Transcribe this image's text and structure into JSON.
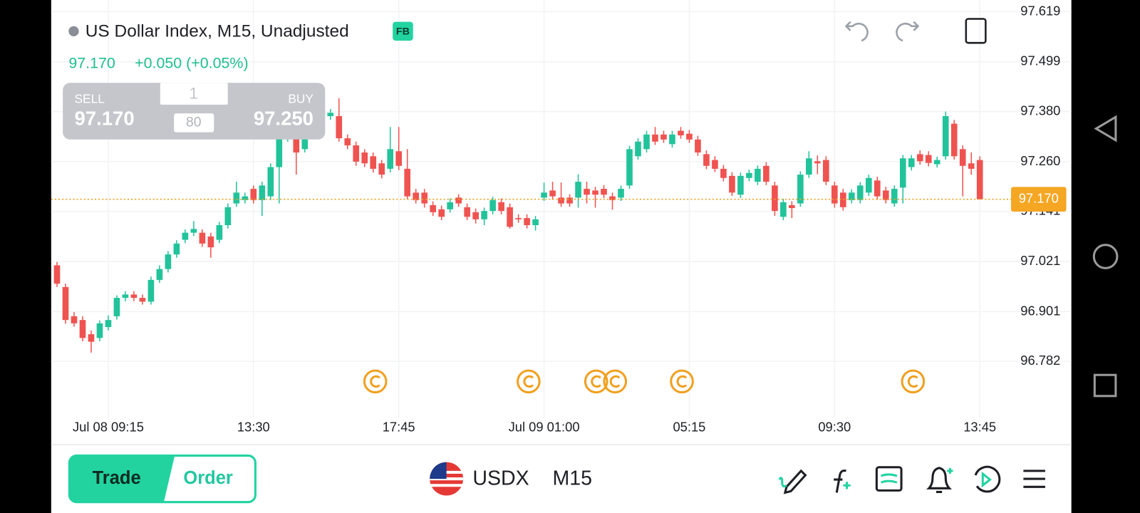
{
  "header": {
    "title": "US Dollar Index, M15, Unadjusted",
    "badge": "FB",
    "price": "97.170",
    "change": "+0.050 (+0.05%)"
  },
  "order_panel": {
    "sell_label": "SELL",
    "sell_price": "97.170",
    "quantity": "1",
    "spread": "80",
    "buy_label": "BUY",
    "buy_price": "97.250"
  },
  "toolbar": {
    "trade": "Trade",
    "order": "Order",
    "symbol": "USDX",
    "timeframe": "M15"
  },
  "chart_data": {
    "type": "candlestick",
    "up_color": "#22c39a",
    "down_color": "#ef5350",
    "ylim": [
      96.673,
      97.647
    ],
    "xlim": [
      -0.68,
      111.57
    ],
    "grid": true,
    "yticks": [
      97.619,
      97.499,
      {
        "value": 97.38,
        "label": "97.380"
      },
      {
        "value": 97.26,
        "label": "97.260"
      },
      97.141,
      97.021,
      96.901,
      96.782
    ],
    "xticks": [
      {
        "value": 6,
        "label": "Jul 08 09:15"
      },
      {
        "value": 23,
        "label": "13:30"
      },
      {
        "value": 40,
        "label": "17:45"
      },
      {
        "value": 57,
        "label": "Jul 09 01:00"
      },
      {
        "value": 74,
        "label": "05:15"
      },
      {
        "value": 91,
        "label": "09:30"
      },
      {
        "value": 108,
        "label": "13:45"
      }
    ],
    "last_price": {
      "value": 97.17,
      "label": "97.170"
    },
    "ohlc": [
      [
        97.012,
        97.02,
        96.96,
        96.968
      ],
      [
        96.96,
        96.968,
        96.872,
        96.881
      ],
      [
        96.89,
        96.9,
        96.865,
        96.873
      ],
      [
        96.881,
        96.89,
        96.83,
        96.838
      ],
      [
        96.847,
        96.856,
        96.803,
        96.829
      ],
      [
        96.838,
        96.88,
        96.83,
        96.873
      ],
      [
        96.864,
        96.892,
        96.856,
        96.881
      ],
      [
        96.89,
        96.94,
        96.882,
        96.934
      ],
      [
        96.934,
        96.95,
        96.926,
        96.942
      ],
      [
        96.942,
        96.95,
        96.926,
        96.934
      ],
      [
        96.934,
        96.942,
        96.918,
        96.925
      ],
      [
        96.925,
        96.985,
        96.918,
        96.977
      ],
      [
        96.977,
        97.012,
        96.97,
        97.003
      ],
      [
        97.003,
        97.046,
        96.995,
        97.038
      ],
      [
        97.038,
        97.072,
        97.03,
        97.064
      ],
      [
        97.073,
        97.098,
        97.065,
        97.09
      ],
      [
        97.09,
        97.118,
        97.082,
        97.099
      ],
      [
        97.09,
        97.098,
        97.056,
        97.064
      ],
      [
        97.081,
        97.09,
        97.03,
        97.055
      ],
      [
        97.073,
        97.116,
        97.065,
        97.108
      ],
      [
        97.108,
        97.16,
        97.1,
        97.151
      ],
      [
        97.16,
        97.212,
        97.152,
        97.186
      ],
      [
        97.168,
        97.186,
        97.16,
        97.177
      ],
      [
        97.195,
        97.203,
        97.16,
        97.168
      ],
      [
        97.168,
        97.212,
        97.13,
        97.203
      ],
      [
        97.177,
        97.256,
        97.168,
        97.247
      ],
      [
        97.247,
        97.34,
        97.16,
        97.325
      ],
      [
        97.316,
        97.36,
        97.308,
        97.351
      ],
      [
        97.316,
        97.334,
        97.229,
        97.282
      ],
      [
        97.29,
        97.343,
        97.282,
        97.334
      ],
      [
        97.325,
        97.4,
        97.316,
        97.386
      ],
      [
        97.351,
        97.395,
        97.343,
        97.377
      ],
      [
        97.369,
        97.386,
        97.36,
        97.377
      ],
      [
        97.369,
        97.412,
        97.308,
        97.316
      ],
      [
        97.316,
        97.325,
        97.29,
        97.299
      ],
      [
        97.299,
        97.308,
        97.25,
        97.26
      ],
      [
        97.282,
        97.29,
        97.247,
        97.256
      ],
      [
        97.273,
        97.282,
        97.234,
        97.243
      ],
      [
        97.256,
        97.264,
        97.22,
        97.229
      ],
      [
        97.243,
        97.343,
        97.234,
        97.29
      ],
      [
        97.285,
        97.343,
        97.24,
        97.25
      ],
      [
        97.243,
        97.29,
        97.17,
        97.177
      ],
      [
        97.186,
        97.195,
        97.16,
        97.168
      ],
      [
        97.186,
        97.195,
        97.15,
        97.16
      ],
      [
        97.156,
        97.165,
        97.13,
        97.139
      ],
      [
        97.146,
        97.155,
        97.12,
        97.128
      ],
      [
        97.146,
        97.172,
        97.138,
        97.163
      ],
      [
        97.174,
        97.182,
        97.152,
        97.16
      ],
      [
        97.151,
        97.16,
        97.12,
        97.128
      ],
      [
        97.139,
        97.148,
        97.112,
        97.122
      ],
      [
        97.122,
        97.15,
        97.108,
        97.142
      ],
      [
        97.142,
        97.176,
        97.134,
        97.168
      ],
      [
        97.163,
        97.172,
        97.134,
        97.142
      ],
      [
        97.151,
        97.16,
        97.1,
        97.104
      ],
      [
        97.125,
        97.134,
        97.114,
        97.122
      ],
      [
        97.125,
        97.134,
        97.1,
        97.108
      ],
      [
        97.108,
        97.13,
        97.095,
        97.122
      ],
      [
        97.174,
        97.21,
        97.166,
        97.186
      ],
      [
        97.191,
        97.212,
        97.169,
        97.177
      ],
      [
        97.174,
        97.21,
        97.152,
        97.16
      ],
      [
        97.174,
        97.182,
        97.152,
        97.16
      ],
      [
        97.174,
        97.23,
        97.15,
        97.212
      ],
      [
        97.195,
        97.212,
        97.16,
        97.181
      ],
      [
        97.191,
        97.2,
        97.15,
        97.181
      ],
      [
        97.195,
        97.204,
        97.173,
        97.181
      ],
      [
        97.177,
        97.186,
        97.145,
        97.168
      ],
      [
        97.174,
        97.203,
        97.166,
        97.195
      ],
      [
        97.203,
        97.298,
        97.195,
        97.29
      ],
      [
        97.273,
        97.316,
        97.265,
        97.308
      ],
      [
        97.29,
        97.334,
        97.282,
        97.325
      ],
      [
        97.325,
        97.343,
        97.3,
        97.308
      ],
      [
        97.325,
        97.334,
        97.305,
        97.313
      ],
      [
        97.302,
        97.334,
        97.294,
        97.325
      ],
      [
        97.334,
        97.343,
        97.315,
        97.323
      ],
      [
        97.327,
        97.336,
        97.305,
        97.313
      ],
      [
        97.313,
        97.322,
        97.274,
        97.282
      ],
      [
        97.278,
        97.287,
        97.242,
        97.25
      ],
      [
        97.264,
        97.273,
        97.235,
        97.243
      ],
      [
        97.243,
        97.252,
        97.213,
        97.221
      ],
      [
        97.226,
        97.235,
        97.178,
        97.186
      ],
      [
        97.181,
        97.234,
        97.173,
        97.226
      ],
      [
        97.221,
        97.241,
        97.213,
        97.233
      ],
      [
        97.212,
        97.251,
        97.204,
        97.243
      ],
      [
        97.25,
        97.259,
        97.204,
        97.212
      ],
      [
        97.203,
        97.212,
        97.13,
        97.142
      ],
      [
        97.128,
        97.171,
        97.12,
        97.163
      ],
      [
        97.156,
        97.165,
        97.125,
        97.149
      ],
      [
        97.16,
        97.237,
        97.152,
        97.229
      ],
      [
        97.229,
        97.285,
        97.221,
        97.268
      ],
      [
        97.261,
        97.275,
        97.23,
        97.256
      ],
      [
        97.264,
        97.273,
        97.204,
        97.212
      ],
      [
        97.203,
        97.212,
        97.15,
        97.16
      ],
      [
        97.186,
        97.195,
        97.143,
        97.151
      ],
      [
        97.168,
        97.194,
        97.16,
        97.186
      ],
      [
        97.168,
        97.211,
        97.16,
        97.203
      ],
      [
        97.186,
        97.229,
        97.178,
        97.221
      ],
      [
        97.215,
        97.224,
        97.169,
        97.177
      ],
      [
        97.191,
        97.2,
        97.16,
        97.168
      ],
      [
        97.16,
        97.203,
        97.152,
        97.195
      ],
      [
        97.198,
        97.276,
        97.16,
        97.268
      ],
      [
        97.247,
        97.276,
        97.239,
        97.268
      ],
      [
        97.278,
        97.287,
        97.253,
        97.261
      ],
      [
        97.276,
        97.285,
        97.249,
        97.257
      ],
      [
        97.254,
        97.272,
        97.246,
        97.264
      ],
      [
        97.273,
        97.38,
        97.265,
        97.369
      ],
      [
        97.351,
        97.36,
        97.265,
        97.273
      ],
      [
        97.29,
        97.299,
        97.177,
        97.25
      ],
      [
        97.256,
        97.282,
        97.229,
        97.243
      ],
      [
        97.264,
        97.273,
        97.17,
        97.17
      ]
    ]
  }
}
